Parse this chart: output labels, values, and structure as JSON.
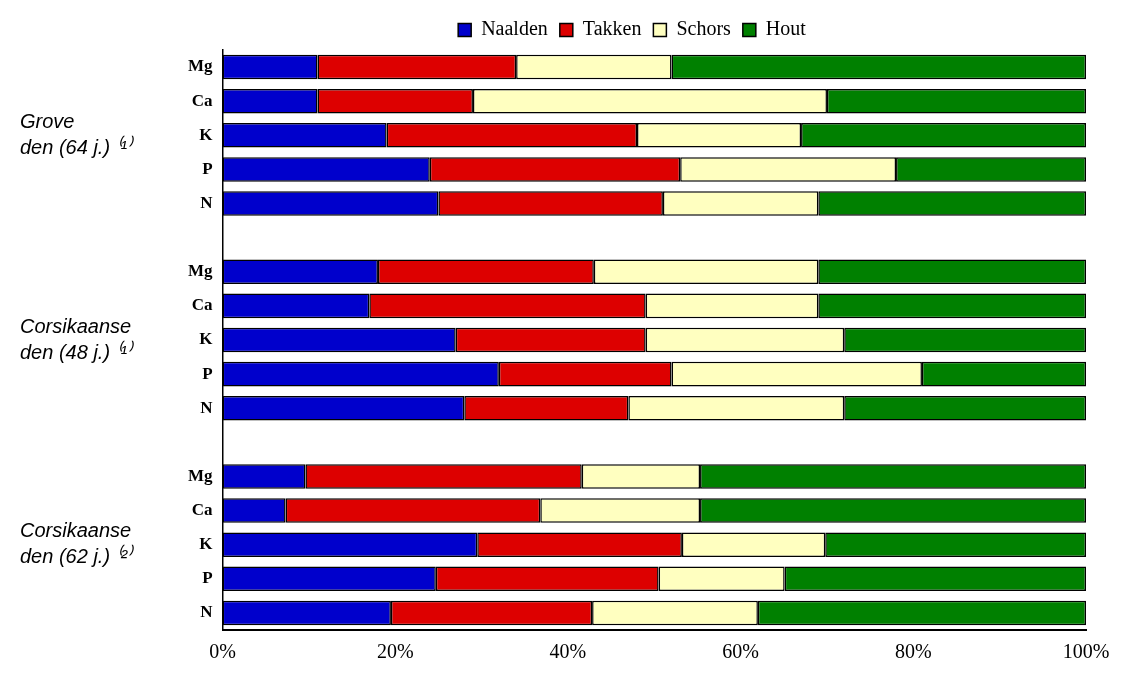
{
  "chart_data": {
    "type": "bar",
    "orientation": "horizontal",
    "stacked": true,
    "categories": [
      "Mg",
      "Ca",
      "K",
      "P",
      "N",
      null,
      "Mg",
      "Ca",
      "K",
      "P",
      "N",
      null,
      "Mg",
      "Ca",
      "K",
      "P",
      "N"
    ],
    "series": [
      {
        "name": "Naalden",
        "color": "#0000cc",
        "values": [
          11,
          11,
          19,
          24,
          25,
          null,
          18,
          17,
          27,
          32,
          28,
          null,
          9.6,
          7.3,
          29.5,
          24.7,
          19.5
        ]
      },
      {
        "name": "Takken",
        "color": "#dd0000",
        "values": [
          23,
          18,
          29,
          29,
          26,
          null,
          25,
          32,
          22,
          20,
          19,
          null,
          32.0,
          29.5,
          23.7,
          25.8,
          23.3
        ]
      },
      {
        "name": "Schors",
        "color": "#ffffc0",
        "values": [
          18,
          41,
          19,
          25,
          18,
          null,
          26,
          20,
          23,
          29,
          25,
          null,
          13.7,
          18.5,
          16.6,
          14.6,
          19.2
        ]
      },
      {
        "name": "Hout",
        "color": "#008000",
        "values": [
          48,
          30,
          33,
          22,
          31,
          null,
          31,
          31,
          28,
          19,
          28,
          null,
          44.7,
          44.7,
          30.2,
          34.9,
          38.0
        ]
      }
    ],
    "xlim": [
      0,
      100
    ],
    "xticks": [
      {
        "value": 0,
        "label": "0%"
      },
      {
        "value": 20,
        "label": "20%"
      },
      {
        "value": 40,
        "label": "40%"
      },
      {
        "value": 60,
        "label": "60%"
      },
      {
        "value": 80,
        "label": "80%"
      },
      {
        "value": 100,
        "label": "100%"
      }
    ],
    "grid": false,
    "legend": "top",
    "annotations": [
      "Grove den (64 j.) ⁽¹⁾",
      "Corsikaanse den (48 j.) ⁽¹⁾",
      "Corsikaanse den (62 j.) ⁽²⁾"
    ]
  }
}
